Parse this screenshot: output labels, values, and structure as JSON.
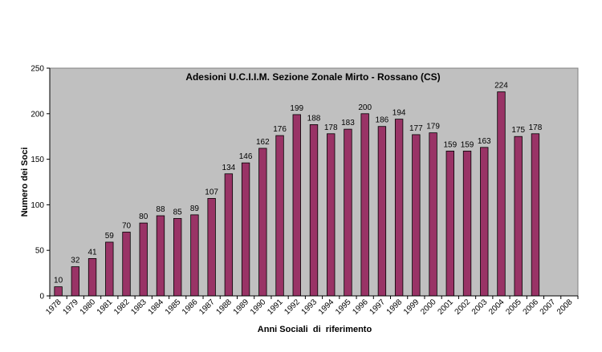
{
  "chart_data": {
    "type": "bar",
    "title": "Adesioni U.C.I.I.M. Sezione Zonale Mirto - Rossano (CS)",
    "xlabel": "Anni Sociali  di  riferimento",
    "ylabel": "Numero dei Soci",
    "ylim": [
      0,
      250
    ],
    "yticks": [
      0,
      50,
      100,
      150,
      200,
      250
    ],
    "grid": false,
    "legend": "none",
    "categories": [
      "1978",
      "1979",
      "1980",
      "1981",
      "1982",
      "1983",
      "1984",
      "1985",
      "1986",
      "1987",
      "1988",
      "1989",
      "1990",
      "1991",
      "1992",
      "1993",
      "1994",
      "1995",
      "1996",
      "1997",
      "1998",
      "1999",
      "2000",
      "2001",
      "2002",
      "2003",
      "2004",
      "2005",
      "2006",
      "2007",
      "2008"
    ],
    "values": [
      10,
      32,
      41,
      59,
      70,
      80,
      88,
      85,
      89,
      107,
      134,
      146,
      162,
      176,
      199,
      188,
      178,
      183,
      200,
      186,
      194,
      177,
      179,
      159,
      159,
      163,
      224,
      175,
      178,
      null,
      null
    ],
    "colors": {
      "bar": "#993366",
      "plot_background": "#c0c0c0",
      "border": "#000000"
    }
  }
}
